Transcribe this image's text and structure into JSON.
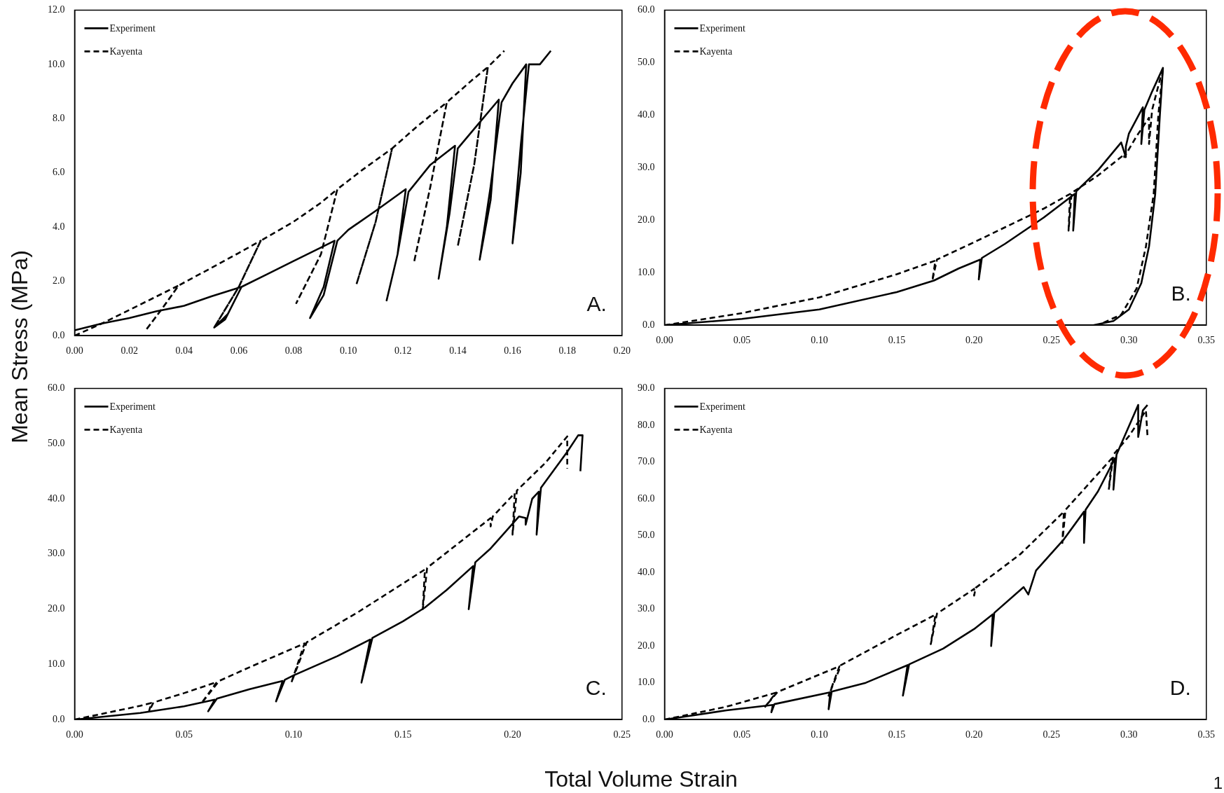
{
  "chart_data": [
    {
      "type": "line",
      "ylabel": "Mean Stress (MPa)",
      "legend": "top left",
      "annotations": [
        "A."
      ],
      "xlim": [
        0,
        0.2
      ],
      "xticks": [
        {
          "value": 0,
          "label": "0.00"
        },
        {
          "value": 0.02,
          "label": "0.02"
        },
        {
          "value": 0.04,
          "label": "0.04"
        },
        {
          "value": 0.06,
          "label": "0.06"
        },
        {
          "value": 0.08,
          "label": "0.08"
        },
        {
          "value": 0.1,
          "label": "0.10"
        },
        {
          "value": 0.12,
          "label": "0.12"
        },
        {
          "value": 0.14,
          "label": "0.14"
        },
        {
          "value": 0.16,
          "label": "0.16"
        },
        {
          "value": 0.18,
          "label": "0.18"
        },
        {
          "value": 0.2,
          "label": "0.20"
        }
      ],
      "ylim": [
        0,
        12
      ],
      "yticks": [
        {
          "value": 0,
          "label": "0.0"
        },
        {
          "value": 2,
          "label": "2.0"
        },
        {
          "value": 4,
          "label": "4.0"
        },
        {
          "value": 6,
          "label": "6.0"
        },
        {
          "value": 8,
          "label": "8.0"
        },
        {
          "value": 10,
          "label": "10.0"
        },
        {
          "value": 12,
          "label": "12.0"
        }
      ],
      "series": [
        {
          "name": "Experiment",
          "color": "#000000",
          "line_style": "solid",
          "x": [
            0,
            0.01,
            0.02,
            0.03,
            0.04,
            0.05,
            0.061,
            0.056,
            0.051,
            0.055,
            0.061,
            0.07,
            0.08,
            0.09,
            0.095,
            0.091,
            0.086,
            0.091,
            0.096,
            0.1,
            0.11,
            0.121,
            0.118,
            0.114,
            0.118,
            0.122,
            0.13,
            0.139,
            0.136,
            0.133,
            0.137,
            0.14,
            0.145,
            0.155,
            0.152,
            0.148,
            0.152,
            0.156,
            0.16,
            0.165,
            0.163,
            0.16,
            0.163,
            0.166,
            0.168,
            0.17,
            0.174
          ],
          "values": [
            0.2,
            0.45,
            0.65,
            0.9,
            1.1,
            1.45,
            1.8,
            0.8,
            0.3,
            0.6,
            1.8,
            2.25,
            2.75,
            3.25,
            3.5,
            1.8,
            0.65,
            1.5,
            3.5,
            3.9,
            4.6,
            5.4,
            3.0,
            1.3,
            3.0,
            5.3,
            6.3,
            7.0,
            4.0,
            2.1,
            4.5,
            6.9,
            7.5,
            8.7,
            5.0,
            2.8,
            5.5,
            8.6,
            9.3,
            10.0,
            6.0,
            3.4,
            7.0,
            10.0,
            10.0,
            10.0,
            10.5
          ]
        },
        {
          "name": "Kayenta",
          "color": "#000000",
          "line_style": "dashed",
          "x": [
            0,
            0.01,
            0.02,
            0.03,
            0.038,
            0.032,
            0.026,
            0.032,
            0.038,
            0.05,
            0.06,
            0.068,
            0.06,
            0.051,
            0.06,
            0.068,
            0.08,
            0.09,
            0.096,
            0.09,
            0.081,
            0.09,
            0.096,
            0.105,
            0.116,
            0.11,
            0.103,
            0.11,
            0.116,
            0.125,
            0.136,
            0.13,
            0.124,
            0.13,
            0.136,
            0.145,
            0.151,
            0.146,
            0.14,
            0.146,
            0.151,
            0.157
          ],
          "values": [
            0,
            0.45,
            0.95,
            1.45,
            1.85,
            1.0,
            0.2,
            1.0,
            1.85,
            2.5,
            3.05,
            3.5,
            1.8,
            0.3,
            1.8,
            3.5,
            4.2,
            4.9,
            5.4,
            3.0,
            1.2,
            3.0,
            5.4,
            6.1,
            6.9,
            4.2,
            1.9,
            4.2,
            6.9,
            7.7,
            8.6,
            5.5,
            2.7,
            5.5,
            8.6,
            9.4,
            9.9,
            6.3,
            3.3,
            6.3,
            9.9,
            10.5
          ]
        }
      ]
    },
    {
      "type": "line",
      "legend": "top left",
      "annotations": [
        "B."
      ],
      "xlim": [
        0,
        0.35
      ],
      "xticks": [
        {
          "value": 0,
          "label": "0.00"
        },
        {
          "value": 0.05,
          "label": "0.05"
        },
        {
          "value": 0.1,
          "label": "0.10"
        },
        {
          "value": 0.15,
          "label": "0.15"
        },
        {
          "value": 0.2,
          "label": "0.20"
        },
        {
          "value": 0.25,
          "label": "0.25"
        },
        {
          "value": 0.3,
          "label": "0.30"
        },
        {
          "value": 0.35,
          "label": "0.35"
        }
      ],
      "ylim": [
        0,
        60
      ],
      "yticks": [
        {
          "value": 0,
          "label": "0.0"
        },
        {
          "value": 10,
          "label": "10.0"
        },
        {
          "value": 20,
          "label": "20.0"
        },
        {
          "value": 30,
          "label": "30.0"
        },
        {
          "value": 40,
          "label": "40.0"
        },
        {
          "value": 50,
          "label": "50.0"
        },
        {
          "value": 60,
          "label": "60.0"
        }
      ],
      "series": [
        {
          "name": "Experiment",
          "color": "#000000",
          "line_style": "solid",
          "x": [
            0,
            0.05,
            0.1,
            0.15,
            0.174,
            0.19,
            0.204,
            0.203,
            0.205,
            0.22,
            0.245,
            0.265,
            0.264,
            0.266,
            0.28,
            0.295,
            0.298,
            0.298,
            0.3,
            0.309,
            0.308,
            0.31,
            0.315,
            0.322,
            0.32,
            0.317,
            0.313,
            0.308,
            0.3,
            0.29,
            0.277
          ],
          "values": [
            0,
            1.2,
            3.0,
            6.3,
            8.5,
            10.8,
            12.5,
            8.7,
            12.8,
            15.5,
            20.5,
            25,
            18,
            25.5,
            29.5,
            34.8,
            32,
            34,
            36.5,
            41.5,
            34.5,
            41,
            44.5,
            49,
            40,
            25,
            15,
            8,
            3,
            0.8,
            0
          ]
        },
        {
          "name": "Kayenta",
          "color": "#000000",
          "line_style": "dashed",
          "x": [
            0,
            0.05,
            0.1,
            0.15,
            0.175,
            0.173,
            0.176,
            0.2,
            0.245,
            0.262,
            0.261,
            0.263,
            0.28,
            0.297,
            0.297,
            0.299,
            0.305,
            0.313,
            0.313,
            0.315,
            0.322,
            0.319,
            0.316,
            0.311,
            0.305,
            0.295,
            0.28
          ],
          "values": [
            0,
            2.3,
            5.3,
            9.7,
            12.3,
            8.5,
            12.5,
            15.8,
            22.2,
            25,
            18,
            25.2,
            28.5,
            32.5,
            32,
            33,
            36,
            39.5,
            34.5,
            41,
            49,
            40,
            25,
            15,
            7,
            2,
            0
          ]
        }
      ]
    },
    {
      "type": "line",
      "xlabel": "Total Volume Strain",
      "legend": "top left",
      "annotations": [
        "C."
      ],
      "xlim": [
        0,
        0.25
      ],
      "xticks": [
        {
          "value": 0,
          "label": "0.00"
        },
        {
          "value": 0.05,
          "label": "0.05"
        },
        {
          "value": 0.1,
          "label": "0.10"
        },
        {
          "value": 0.15,
          "label": "0.15"
        },
        {
          "value": 0.2,
          "label": "0.20"
        },
        {
          "value": 0.25,
          "label": "0.25"
        }
      ],
      "ylim": [
        0,
        60
      ],
      "yticks": [
        {
          "value": 0,
          "label": "0.0"
        },
        {
          "value": 10,
          "label": "10.0"
        },
        {
          "value": 20,
          "label": "20.0"
        },
        {
          "value": 30,
          "label": "30.0"
        },
        {
          "value": 40,
          "label": "40.0"
        },
        {
          "value": 50,
          "label": "50.0"
        },
        {
          "value": 60,
          "label": "60.0"
        }
      ],
      "series": [
        {
          "name": "Experiment",
          "color": "#000000",
          "line_style": "solid",
          "x": [
            0,
            0.03,
            0.05,
            0.064,
            0.061,
            0.065,
            0.08,
            0.095,
            0.092,
            0.096,
            0.1,
            0.12,
            0.135,
            0.131,
            0.136,
            0.15,
            0.16,
            0.17,
            0.182,
            0.18,
            0.183,
            0.19,
            0.203,
            0.206,
            0.206,
            0.209,
            0.212,
            0.211,
            0.213,
            0.225,
            0.23,
            0.232,
            0.231
          ],
          "values": [
            0,
            1.2,
            2.4,
            3.6,
            1.5,
            3.8,
            5.5,
            7,
            3.3,
            7.2,
            8,
            11.5,
            14.5,
            6.7,
            14.8,
            17.8,
            20.3,
            23.5,
            27.8,
            20,
            28.5,
            31,
            36.8,
            36.5,
            35.3,
            40,
            41.3,
            33.5,
            42,
            48.5,
            51.5,
            51.5,
            45
          ]
        },
        {
          "name": "Kayenta",
          "color": "#000000",
          "line_style": "dashed",
          "x": [
            0,
            0.03,
            0.035,
            0.034,
            0.036,
            0.05,
            0.065,
            0.058,
            0.066,
            0.08,
            0.105,
            0.099,
            0.106,
            0.13,
            0.16,
            0.159,
            0.161,
            0.19,
            0.19,
            0.191,
            0.201,
            0.2,
            0.202,
            0.215,
            0.225,
            0.225
          ],
          "values": [
            0,
            2.5,
            3,
            1.5,
            3.1,
            4.8,
            6.8,
            3,
            7,
            9.5,
            13.8,
            6.7,
            14,
            19.6,
            27.2,
            20,
            27.5,
            36.5,
            35,
            36.8,
            41,
            33.5,
            41.5,
            46.5,
            51.3,
            45.5
          ]
        }
      ]
    },
    {
      "type": "line",
      "legend": "top left",
      "annotations": [
        "D.",
        "1"
      ],
      "xlim": [
        0,
        0.35
      ],
      "xticks": [
        {
          "value": 0,
          "label": "0.00"
        },
        {
          "value": 0.05,
          "label": "0.05"
        },
        {
          "value": 0.1,
          "label": "0.10"
        },
        {
          "value": 0.15,
          "label": "0.15"
        },
        {
          "value": 0.2,
          "label": "0.20"
        },
        {
          "value": 0.25,
          "label": "0.25"
        },
        {
          "value": 0.3,
          "label": "0.30"
        },
        {
          "value": 0.35,
          "label": "0.35"
        }
      ],
      "ylim": [
        0,
        90
      ],
      "yticks": [
        {
          "value": 0,
          "label": "0.0"
        },
        {
          "value": 10,
          "label": "10.0"
        },
        {
          "value": 20,
          "label": "20.0"
        },
        {
          "value": 30,
          "label": "30.0"
        },
        {
          "value": 40,
          "label": "40.0"
        },
        {
          "value": 50,
          "label": "50.0"
        },
        {
          "value": 60,
          "label": "60.0"
        },
        {
          "value": 70,
          "label": "70.0"
        },
        {
          "value": 80,
          "label": "80.0"
        },
        {
          "value": 90,
          "label": "90.0"
        }
      ],
      "series": [
        {
          "name": "Experiment",
          "color": "#000000",
          "line_style": "solid",
          "x": [
            0,
            0.04,
            0.07,
            0.069,
            0.071,
            0.107,
            0.106,
            0.108,
            0.13,
            0.157,
            0.154,
            0.158,
            0.18,
            0.2,
            0.212,
            0.211,
            0.213,
            0.232,
            0.235,
            0.24,
            0.258,
            0.271,
            0.271,
            0.272,
            0.28,
            0.291,
            0.29,
            0.292,
            0.306,
            0.306,
            0.309,
            0.312
          ],
          "values": [
            0,
            2.5,
            4,
            2,
            4.2,
            7.4,
            2.8,
            7.6,
            10,
            14.8,
            6.5,
            15,
            19.3,
            24.6,
            28.6,
            20,
            29,
            36,
            34,
            40.5,
            49,
            56.5,
            48,
            57,
            62,
            71,
            62.5,
            72,
            85.5,
            76.8,
            84,
            85.5
          ]
        },
        {
          "name": "Kayenta",
          "color": "#000000",
          "line_style": "dashed",
          "x": [
            0,
            0.04,
            0.072,
            0.065,
            0.073,
            0.113,
            0.106,
            0.114,
            0.15,
            0.175,
            0.172,
            0.176,
            0.2,
            0.2,
            0.201,
            0.23,
            0.258,
            0.257,
            0.259,
            0.289,
            0.287,
            0.29,
            0.3,
            0.311,
            0.312
          ],
          "values": [
            0,
            3.5,
            7.3,
            3.5,
            7.5,
            14.5,
            6.5,
            14.8,
            23,
            28.5,
            20.5,
            28.8,
            35.5,
            33.7,
            35.8,
            45,
            56.5,
            48,
            57,
            71,
            62.5,
            72,
            77,
            84,
            77
          ]
        }
      ]
    }
  ]
}
